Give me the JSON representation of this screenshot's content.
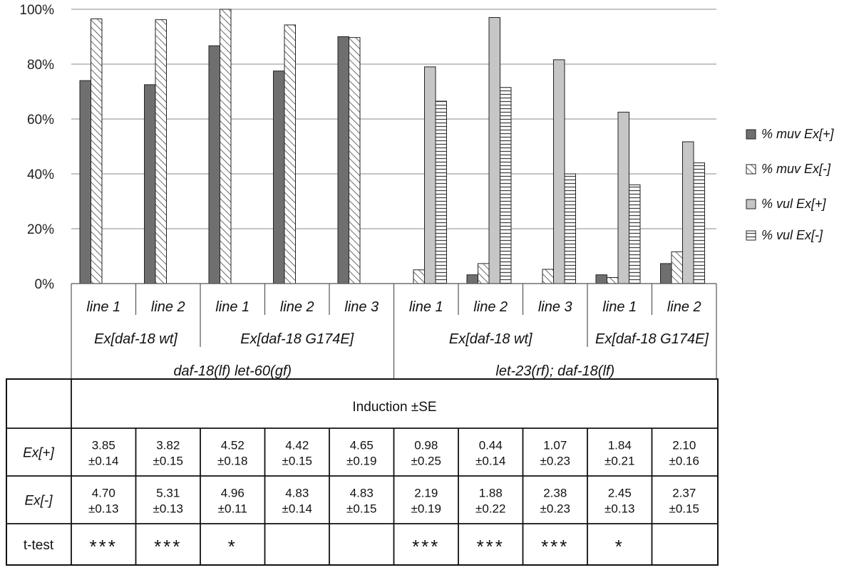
{
  "chart_data": {
    "type": "bar",
    "ylim": [
      0,
      100
    ],
    "yticks": [
      "0%",
      "20%",
      "40%",
      "60%",
      "80%",
      "100%"
    ],
    "grid": true,
    "legend_position": "right",
    "categories": [
      "line 1",
      "line 2",
      "line 1",
      "line 2",
      "line 3",
      "line 1",
      "line 2",
      "line 3",
      "line 1",
      "line 2"
    ],
    "constructs": [
      {
        "label": "Ex[daf-18 wt]",
        "span": 2
      },
      {
        "label": "Ex[daf-18 G174E]",
        "span": 3
      },
      {
        "label": "Ex[daf-18 wt]",
        "span": 3
      },
      {
        "label": "Ex[daf-18 G174E]",
        "span": 2
      }
    ],
    "backgrounds": [
      {
        "label": "daf-18(lf) let-60(gf)",
        "span": 5
      },
      {
        "label": "let-23(rf); daf-18(lf)",
        "span": 5
      }
    ],
    "series": [
      {
        "name": "% muv Ex[+]",
        "pattern": "dark",
        "values": [
          74,
          72.5,
          86.7,
          77.5,
          90,
          null,
          3.2,
          null,
          3.2,
          7.3
        ]
      },
      {
        "name": "% muv Ex[-]",
        "pattern": "diagonal",
        "values": [
          96.5,
          96.2,
          100,
          94.3,
          89.7,
          5,
          7.3,
          5.2,
          2.2,
          11.6
        ]
      },
      {
        "name": "% vul Ex[+]",
        "pattern": "light",
        "values": [
          null,
          null,
          null,
          null,
          null,
          79,
          97,
          81.6,
          62.5,
          51.7
        ]
      },
      {
        "name": "% vul Ex[-]",
        "pattern": "horizontal",
        "values": [
          null,
          null,
          null,
          null,
          null,
          66.5,
          71.5,
          40,
          36,
          44
        ]
      }
    ],
    "colors": {
      "dark": "#6f6f6f",
      "light": "#c6c6c6",
      "border": "#222222",
      "grid": "#8a8a8a"
    }
  },
  "table": {
    "header": "Induction ±SE",
    "rows": [
      {
        "label": "Ex[+]",
        "cells": [
          [
            "3.85",
            "±0.14"
          ],
          [
            "3.82",
            "±0.15"
          ],
          [
            "4.52",
            "±0.18"
          ],
          [
            "4.42",
            "±0.15"
          ],
          [
            "4.65",
            "±0.19"
          ],
          [
            "0.98",
            "±0.25"
          ],
          [
            "0.44",
            "±0.14"
          ],
          [
            "1.07",
            "±0.23"
          ],
          [
            "1.84",
            "±0.21"
          ],
          [
            "2.10",
            "±0.16"
          ]
        ]
      },
      {
        "label": "Ex[-]",
        "cells": [
          [
            "4.70",
            "±0.13"
          ],
          [
            "5.31",
            "±0.13"
          ],
          [
            "4.96",
            "±0.11"
          ],
          [
            "4.83",
            "±0.14"
          ],
          [
            "4.83",
            "±0.15"
          ],
          [
            "2.19",
            "±0.19"
          ],
          [
            "1.88",
            "±0.22"
          ],
          [
            "2.38",
            "±0.23"
          ],
          [
            "2.45",
            "±0.13"
          ],
          [
            "2.37",
            "±0.15"
          ]
        ]
      },
      {
        "label": "t-test",
        "cells": [
          "***",
          "***",
          "*",
          "",
          "",
          "***",
          "***",
          "***",
          "*",
          ""
        ]
      }
    ]
  }
}
